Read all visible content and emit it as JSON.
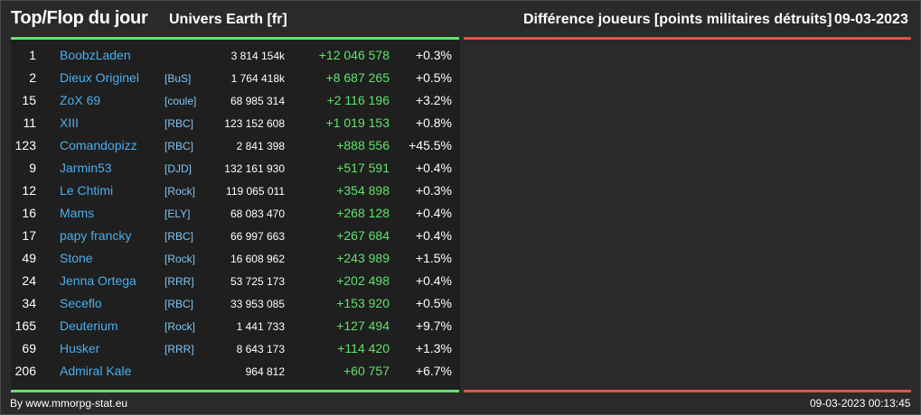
{
  "header": {
    "title": "Top/Flop du jour",
    "universe": "Univers Earth [fr]",
    "metric": "Différence joueurs [points militaires détruits]",
    "date": "09-03-2023"
  },
  "colors": {
    "background": "#2a2a2a",
    "panel": "#1f1f1f",
    "accent_green": "#5ee36b",
    "accent_red": "#e0524a",
    "player_name": "#4aaeee",
    "alliance_tag": "#7fc4f5"
  },
  "players": [
    {
      "rank": "1",
      "name": "BoobzLaden",
      "tag": "",
      "points": "3 814 154k",
      "diff": "+12 046 578",
      "pct": "+0.3%"
    },
    {
      "rank": "2",
      "name": "Dieux Originel",
      "tag": "[BuS]",
      "points": "1 764 418k",
      "diff": "+8 687 265",
      "pct": "+0.5%"
    },
    {
      "rank": "15",
      "name": "ZoX 69",
      "tag": "[coule]",
      "points": "68 985 314",
      "diff": "+2 116 196",
      "pct": "+3.2%"
    },
    {
      "rank": "11",
      "name": "XIII",
      "tag": "[RBC]",
      "points": "123 152 608",
      "diff": "+1 019 153",
      "pct": "+0.8%"
    },
    {
      "rank": "123",
      "name": "Comandopizz",
      "tag": "[RBC]",
      "points": "2 841 398",
      "diff": "+888 556",
      "pct": "+45.5%"
    },
    {
      "rank": "9",
      "name": "Jarmin53",
      "tag": "[DJD]",
      "points": "132 161 930",
      "diff": "+517 591",
      "pct": "+0.4%"
    },
    {
      "rank": "12",
      "name": "Le Chtimi",
      "tag": "[Rock]",
      "points": "119 065 011",
      "diff": "+354 898",
      "pct": "+0.3%"
    },
    {
      "rank": "16",
      "name": "Mams",
      "tag": "[ELY]",
      "points": "68 083 470",
      "diff": "+268 128",
      "pct": "+0.4%"
    },
    {
      "rank": "17",
      "name": "papy francky",
      "tag": "[RBC]",
      "points": "66 997 663",
      "diff": "+267 684",
      "pct": "+0.4%"
    },
    {
      "rank": "49",
      "name": "Stone",
      "tag": "[Rock]",
      "points": "16 608 962",
      "diff": "+243 989",
      "pct": "+1.5%"
    },
    {
      "rank": "24",
      "name": "Jenna Ortega",
      "tag": "[RRR]",
      "points": "53 725 173",
      "diff": "+202 498",
      "pct": "+0.4%"
    },
    {
      "rank": "34",
      "name": "Seceflo",
      "tag": "[RBC]",
      "points": "33 953 085",
      "diff": "+153 920",
      "pct": "+0.5%"
    },
    {
      "rank": "165",
      "name": "Deuterium",
      "tag": "[Rock]",
      "points": "1 441 733",
      "diff": "+127 494",
      "pct": "+9.7%"
    },
    {
      "rank": "69",
      "name": "Husker",
      "tag": "[RRR]",
      "points": "8 643 173",
      "diff": "+114 420",
      "pct": "+1.3%"
    },
    {
      "rank": "206",
      "name": "Admiral Kale",
      "tag": "",
      "points": "964 812",
      "diff": "+60 757",
      "pct": "+6.7%"
    }
  ],
  "footer": {
    "credit": "By www.mmorpg-stat.eu",
    "timestamp": "09-03-2023 00:13:45"
  }
}
